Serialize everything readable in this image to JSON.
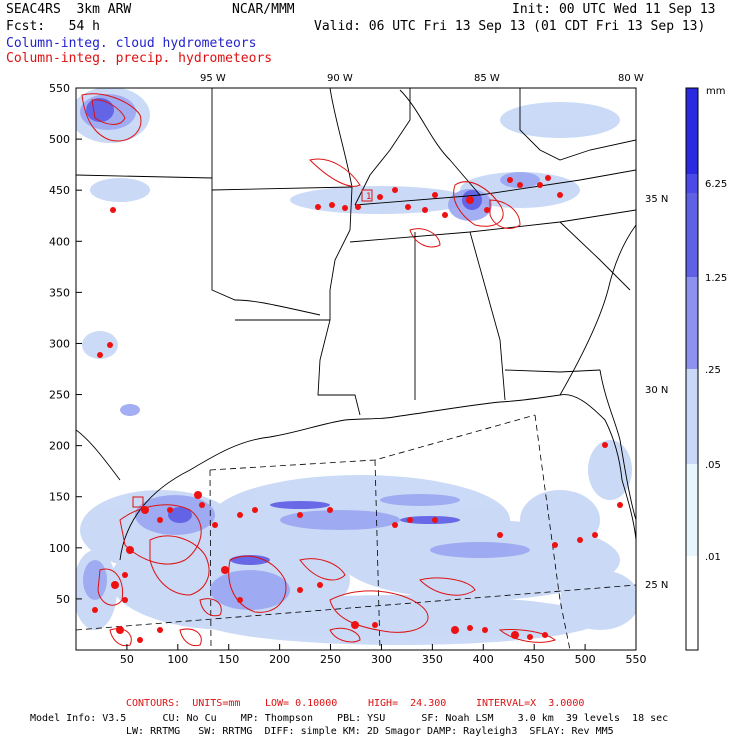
{
  "header": {
    "model": "SEAC4RS  3km ARW",
    "institution": "NCAR/MMM",
    "init": "Init: 00 UTC Wed 11 Sep 13",
    "forecast": "Fcst:   54 h",
    "valid": "Valid: 06 UTC Fri 13 Sep 13 (01 CDT Fri 13 Sep 13)",
    "field_cloud": "Column-integ. cloud hydrometeors",
    "field_precip": "Column-integ. precip. hydrometeors"
  },
  "map": {
    "lon_labels": [
      "95 W",
      "90 W",
      "85 W",
      "80 W"
    ],
    "lat_labels": [
      "35 N",
      "30 N",
      "25 N"
    ],
    "x_ticks": [
      "50",
      "100",
      "150",
      "200",
      "250",
      "300",
      "350",
      "400",
      "450",
      "500",
      "550"
    ],
    "y_ticks": [
      "50",
      "100",
      "150",
      "200",
      "250",
      "300",
      "350",
      "400",
      "450",
      "500",
      "550"
    ],
    "markers": [
      "1"
    ],
    "x_range": [
      0,
      550
    ],
    "y_range": [
      0,
      550
    ]
  },
  "colorbar": {
    "unit": "mm",
    "labels": [
      "6.25",
      "1.25",
      ".25",
      ".05",
      ".01"
    ],
    "colors": [
      "#2a2ae0",
      "#4a4ae6",
      "#7070e6",
      "#9aa6f2",
      "#c8d8f6",
      "#e6f6fc",
      "#ffffff"
    ]
  },
  "contour_info": {
    "units": "CONTOURS:  UNITS=mm",
    "low": "LOW= 0.10000",
    "high": "HIGH=  24.300",
    "interval": "INTERVAL=X  3.0000"
  },
  "model_info": {
    "line1": "Model Info: V3.5      CU: No Cu    MP: Thompson    PBL: YSU      SF: Noah LSM    3.0 km  39 levels  18 sec",
    "line2": "LW: RRTMG   SW: RRTMG  DIFF: simple KM: 2D Smagor DAMP: Rayleigh3  SFLAY: Rev MM5"
  }
}
